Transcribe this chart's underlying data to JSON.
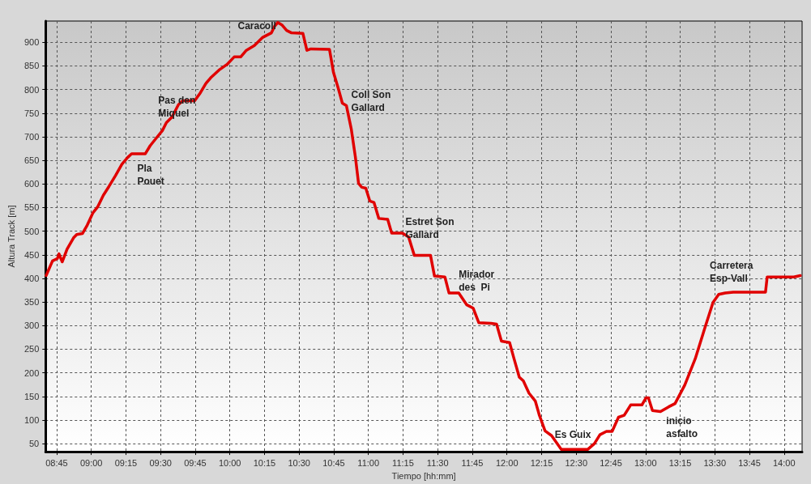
{
  "chart_data": {
    "type": "line",
    "xlabel": "Tiempo [hh:mm]",
    "ylabel": "Altura Track [m]",
    "x": [
      8.674,
      8.72,
      8.755,
      8.767,
      8.79,
      8.825,
      8.872,
      8.895,
      8.936,
      8.971,
      9.012,
      9.047,
      9.087,
      9.128,
      9.175,
      9.221,
      9.262,
      9.291,
      9.39,
      9.425,
      9.466,
      9.513,
      9.542,
      9.583,
      9.629,
      9.659,
      9.746,
      9.787,
      9.827,
      9.862,
      9.921,
      9.979,
      10.031,
      10.078,
      10.119,
      10.177,
      10.235,
      10.3,
      10.323,
      10.346,
      10.375,
      10.41,
      10.445,
      10.527,
      10.556,
      10.585,
      10.719,
      10.748,
      10.783,
      10.812,
      10.841,
      10.876,
      10.906,
      10.929,
      10.952,
      10.981,
      11.01,
      11.04,
      11.075,
      11.139,
      11.168,
      11.244,
      11.29,
      11.331,
      11.448,
      11.477,
      11.552,
      11.582,
      11.652,
      11.71,
      11.756,
      11.797,
      11.885,
      11.925,
      11.96,
      12.019,
      12.048,
      12.089,
      12.118,
      12.159,
      12.205,
      12.234,
      12.275,
      12.322,
      12.392,
      12.584,
      12.631,
      12.671,
      12.718,
      12.759,
      12.805,
      12.846,
      12.893,
      12.974,
      13.003,
      13.021,
      13.05,
      13.108,
      13.167,
      13.213,
      13.283,
      13.359,
      13.429,
      13.487,
      13.528,
      13.575,
      13.633,
      13.866,
      13.878,
      14.07,
      14.117
    ],
    "series": [
      {
        "color": "#e00000",
        "values": [
          406,
          437,
          442,
          452,
          435,
          462,
          486,
          493,
          495,
          513,
          539,
          552,
          576,
          595,
          618,
          642,
          656,
          664,
          664,
          681,
          696,
          713,
          730,
          742,
          768,
          776,
          776,
          793,
          813,
          825,
          841,
          853,
          869,
          869,
          883,
          893,
          910,
          920,
          934,
          942,
          937,
          925,
          920,
          919,
          883,
          886,
          885,
          836,
          802,
          771,
          766,
          717,
          657,
          601,
          593,
          591,
          564,
          561,
          527,
          525,
          496,
          496,
          488,
          449,
          449,
          405,
          403,
          369,
          369,
          344,
          337,
          306,
          305,
          303,
          267,
          264,
          233,
          191,
          183,
          157,
          140,
          110,
          77,
          67,
          38,
          38,
          50,
          69,
          76,
          76,
          106,
          110,
          132,
          132,
          147,
          147,
          120,
          118,
          128,
          135,
          174,
          230,
          296,
          349,
          366,
          369,
          371,
          371,
          403,
          403,
          406
        ]
      }
    ],
    "xlim": [
      8.67,
      14.13
    ],
    "ylim": [
      33,
      945
    ],
    "xticks": [
      {
        "value": 8.75,
        "label": "08:45"
      },
      {
        "value": 9,
        "label": "09:00"
      },
      {
        "value": 9.25,
        "label": "09:15"
      },
      {
        "value": 9.5,
        "label": "09:30"
      },
      {
        "value": 9.75,
        "label": "09:45"
      },
      {
        "value": 10,
        "label": "10:00"
      },
      {
        "value": 10.25,
        "label": "10:15"
      },
      {
        "value": 10.5,
        "label": "10:30"
      },
      {
        "value": 10.75,
        "label": "10:45"
      },
      {
        "value": 11,
        "label": "11:00"
      },
      {
        "value": 11.25,
        "label": "11:15"
      },
      {
        "value": 11.5,
        "label": "11:30"
      },
      {
        "value": 11.75,
        "label": "11:45"
      },
      {
        "value": 12,
        "label": "12:00"
      },
      {
        "value": 12.25,
        "label": "12:15"
      },
      {
        "value": 12.5,
        "label": "12:30"
      },
      {
        "value": 12.75,
        "label": "12:45"
      },
      {
        "value": 13,
        "label": "13:00"
      },
      {
        "value": 13.25,
        "label": "13:15"
      },
      {
        "value": 13.5,
        "label": "13:30"
      },
      {
        "value": 13.75,
        "label": "13:45"
      },
      {
        "value": 14,
        "label": "14:00"
      }
    ],
    "yticks": [
      50,
      100,
      150,
      200,
      250,
      300,
      350,
      400,
      450,
      500,
      550,
      600,
      650,
      700,
      750,
      800,
      850,
      900
    ],
    "grid": true,
    "marker": "none",
    "line_style": "solid",
    "annotations": [
      {
        "text": "Caracoll",
        "x": 10.346,
        "y": 942
      },
      {
        "text": "Pas den\nMiquel",
        "x": 9.629,
        "y": 768
      },
      {
        "text": "Pla\nPouet",
        "x": 9.39,
        "y": 664
      },
      {
        "text": "Coll Son\nGallard",
        "x": 10.812,
        "y": 771
      },
      {
        "text": "Estret Son\nGallard",
        "x": 11.244,
        "y": 496
      },
      {
        "text": "Mirador\ndes  Pi",
        "x": 11.582,
        "y": 369
      },
      {
        "text": "Es Guix",
        "x": 12.392,
        "y": 38
      },
      {
        "text": "inicio\nasfalto",
        "x": 13.167,
        "y": 128
      },
      {
        "text": "Carretera\nEsp-Vall",
        "x": 13.487,
        "y": 349
      }
    ]
  }
}
